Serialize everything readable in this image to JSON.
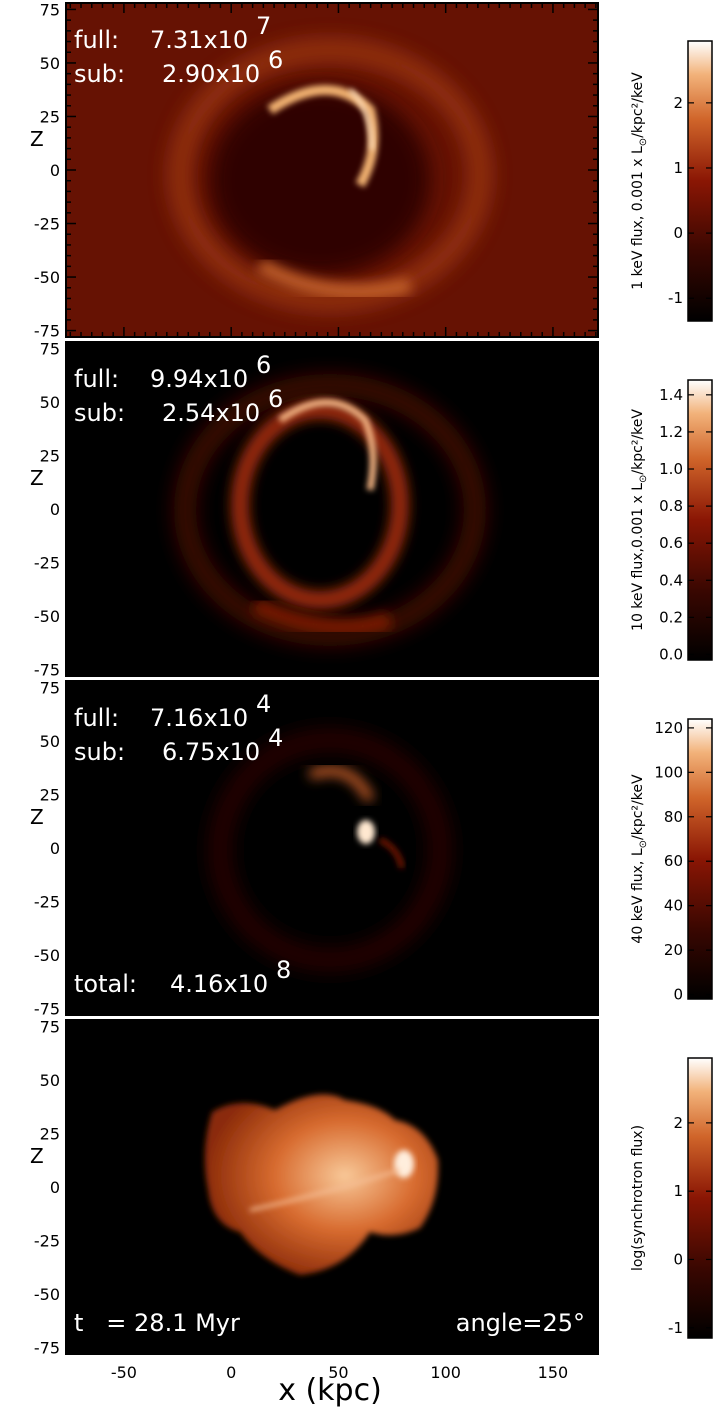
{
  "figure": {
    "x_axis": {
      "label": "x (kpc)",
      "range": [
        -77,
        171
      ],
      "ticks": [
        -50,
        0,
        50,
        100,
        150
      ],
      "tick_labels": [
        "-50",
        "0",
        "50",
        "100",
        "150"
      ]
    },
    "z_axis": {
      "label": "Z",
      "range": [
        -78,
        78
      ],
      "ticks": [
        75,
        50,
        25,
        0,
        -25,
        -50,
        -75
      ],
      "tick_labels": [
        "75",
        "50",
        "25",
        "0",
        "-25",
        "-50",
        "-75"
      ]
    }
  },
  "panels": [
    {
      "background": "#661203",
      "annotations": [
        {
          "prefix": "full:",
          "mantissa": "7.31x10",
          "exponent": "7"
        },
        {
          "prefix": "sub:",
          "mantissa": "2.90x10",
          "exponent": "6"
        }
      ],
      "colorbar": {
        "label_prefix": "1 keV flux, 0.001 x L",
        "label_sub": "⊙",
        "label_suffix": "/kpc²/keV",
        "range": [
          -1.35,
          2.95
        ],
        "ticks": [
          -1,
          0,
          1,
          2
        ],
        "tick_labels": [
          "-1",
          "0",
          "1",
          "2"
        ]
      }
    },
    {
      "background": "#000000",
      "annotations": [
        {
          "prefix": "full:",
          "mantissa": "9.94x10",
          "exponent": "6"
        },
        {
          "prefix": "sub:",
          "mantissa": "2.54x10",
          "exponent": "6"
        }
      ],
      "colorbar": {
        "label_prefix": "10 keV flux,0.001 x L",
        "label_sub": "⊙",
        "label_suffix": "/kpc²/keV",
        "range": [
          -0.03,
          1.48
        ],
        "ticks": [
          0.0,
          0.2,
          0.4,
          0.6,
          0.8,
          1.0,
          1.2,
          1.4
        ],
        "tick_labels": [
          "0.0",
          "0.2",
          "0.4",
          "0.6",
          "0.8",
          "1.0",
          "1.2",
          "1.4"
        ]
      }
    },
    {
      "background": "#000000",
      "annotations": [
        {
          "prefix": "full:",
          "mantissa": "7.16x10",
          "exponent": "4"
        },
        {
          "prefix": "sub:",
          "mantissa": "6.75x10",
          "exponent": "4"
        }
      ],
      "bottom_annotation": {
        "prefix": "total:",
        "mantissa": "4.16x10",
        "exponent": "8"
      },
      "colorbar": {
        "label_prefix": "40 keV flux, L",
        "label_sub": "⊙",
        "label_suffix": "/kpc²/keV",
        "range": [
          -2,
          124
        ],
        "ticks": [
          0,
          20,
          40,
          60,
          80,
          100,
          120
        ],
        "tick_labels": [
          "0",
          "20",
          "40",
          "60",
          "80",
          "100",
          "120"
        ]
      }
    },
    {
      "background": "#000000",
      "time_label": "t   = 28.1 Myr",
      "angle_label": "angle=25°",
      "colorbar": {
        "label_prefix": "log(synchrotron flux)",
        "label_sub": "",
        "label_suffix": "",
        "range": [
          -1.15,
          2.95
        ],
        "ticks": [
          -1,
          0,
          1,
          2
        ],
        "tick_labels": [
          "-1",
          "0",
          "1",
          "2"
        ]
      }
    }
  ],
  "colors": {
    "map_dark": "#000000",
    "map_mid": "#8a1604",
    "map_bright": "#e28a3a",
    "map_white": "#fff6ec"
  }
}
